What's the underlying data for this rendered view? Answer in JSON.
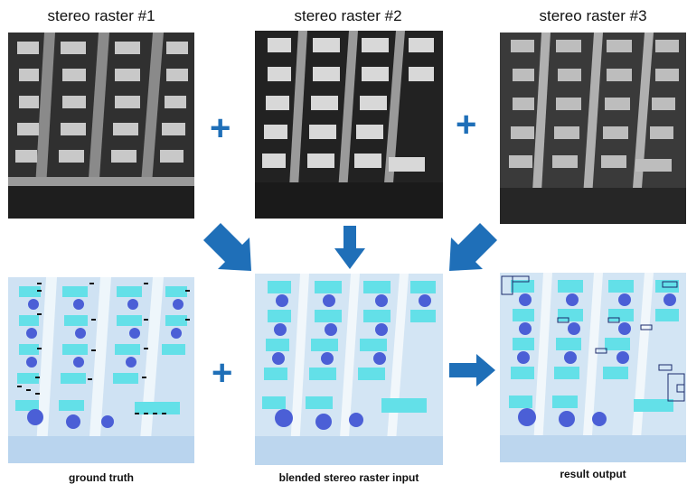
{
  "labels": {
    "raster1": "stereo raster #1",
    "raster2": "stereo raster #2",
    "raster3": "stereo raster #3",
    "ground_truth": "ground truth",
    "blended": "blended stereo raster input",
    "result": "result output"
  },
  "operators": {
    "plus": "+"
  },
  "colors": {
    "accent": "#1f6fb8",
    "tint_bg": "#cfe2f3",
    "gray_bg": "#2d2d2d"
  }
}
